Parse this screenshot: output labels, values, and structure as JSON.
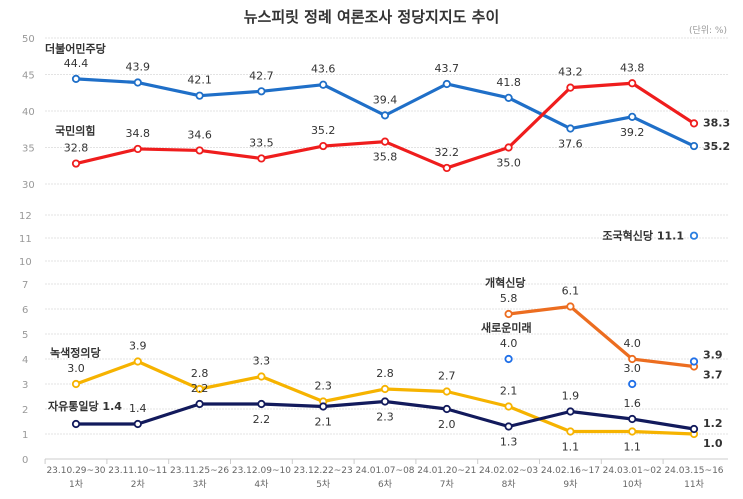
{
  "chart_data": {
    "type": "line",
    "title": "뉴스피릿 정례 여론조사 정당지지도 추이",
    "unit_note": "(단위: %)",
    "axis_break": true,
    "upper_axis": {
      "range": [
        30,
        50
      ],
      "ticks": [
        30,
        35,
        40,
        45,
        50
      ]
    },
    "lower_axis": {
      "range": [
        0,
        12
      ],
      "ticks": [
        0,
        1,
        2,
        3,
        4,
        5,
        6,
        7,
        10,
        11,
        12
      ]
    },
    "grid": true,
    "categories": [
      {
        "date": "23.10.29~30",
        "round": "1차"
      },
      {
        "date": "23.11.10~11",
        "round": "2차"
      },
      {
        "date": "23.11.25~26",
        "round": "3차"
      },
      {
        "date": "23.12.09~10",
        "round": "4차"
      },
      {
        "date": "23.12.22~23",
        "round": "5차"
      },
      {
        "date": "24.01.07~08",
        "round": "6차"
      },
      {
        "date": "24.01.20~21",
        "round": "7차"
      },
      {
        "date": "24.02.02~03",
        "round": "8차"
      },
      {
        "date": "24.02.16~17",
        "round": "9차"
      },
      {
        "date": "24.03.01~02",
        "round": "10차"
      },
      {
        "date": "24.03.15~16",
        "round": "11차"
      }
    ],
    "series": [
      {
        "name": "더불어민주당",
        "panel": "upper",
        "color": "#1f6fc8",
        "values": [
          44.4,
          43.9,
          42.1,
          42.7,
          43.6,
          39.4,
          43.7,
          41.8,
          37.6,
          39.2,
          35.2
        ]
      },
      {
        "name": "국민의힘",
        "panel": "upper",
        "color": "#ef1d1d",
        "values": [
          32.8,
          34.8,
          34.6,
          33.5,
          35.2,
          35.8,
          32.2,
          35.0,
          43.2,
          43.8,
          38.3
        ]
      },
      {
        "name": "녹색정의당",
        "panel": "lower",
        "color": "#f6b300",
        "values": [
          3.0,
          3.9,
          2.8,
          3.3,
          2.3,
          2.8,
          2.7,
          2.1,
          1.1,
          1.1,
          1.0
        ]
      },
      {
        "name": "자유통일당",
        "panel": "lower",
        "color": "#121a5c",
        "values": [
          1.4,
          1.4,
          2.2,
          2.2,
          2.1,
          2.3,
          2.0,
          1.3,
          1.9,
          1.6,
          1.2
        ]
      },
      {
        "name": "개혁신당",
        "panel": "lower",
        "color": "#ec6d20",
        "values": [
          null,
          null,
          null,
          null,
          null,
          null,
          null,
          5.8,
          6.1,
          4.0,
          3.7
        ]
      },
      {
        "name": "새로운미래",
        "panel": "lower",
        "color": "#1f6fe8",
        "values": [
          null,
          null,
          null,
          null,
          null,
          null,
          null,
          4.0,
          null,
          3.0,
          3.9
        ]
      },
      {
        "name": "조국혁신당",
        "panel": "lower",
        "color": "#2b7fe0",
        "values": [
          null,
          null,
          null,
          null,
          null,
          null,
          null,
          null,
          null,
          null,
          11.1
        ]
      }
    ]
  }
}
